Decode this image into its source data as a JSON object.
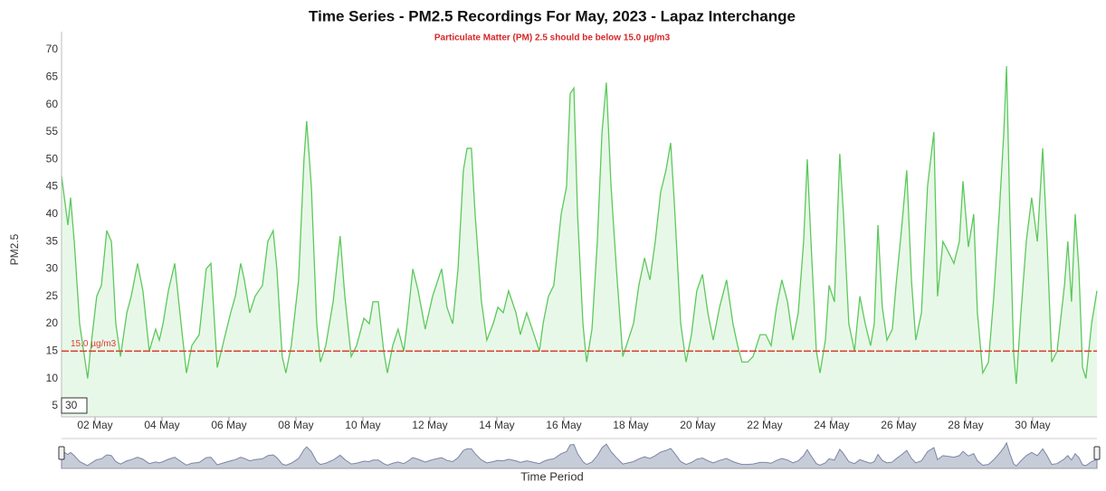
{
  "chart_data": {
    "type": "area",
    "title": "Time Series - PM2.5 Recordings For May, 2023 - Lapaz Interchange",
    "subtitle": "Particulate Matter (PM) 2.5 should be below 15.0 µg/m3",
    "y_label": "PM2.5",
    "x_label": "Time Period",
    "zoom_label": "30",
    "threshold": {
      "value": 15,
      "label": "15.0 µg/m3",
      "color": "#d9412f"
    },
    "xlim": [
      1,
      31.92
    ],
    "ylim": [
      3,
      73.3
    ],
    "xticks": [
      {
        "value": 2,
        "label": "02 May"
      },
      {
        "value": 4,
        "label": "04 May"
      },
      {
        "value": 6,
        "label": "06 May"
      },
      {
        "value": 8,
        "label": "08 May"
      },
      {
        "value": 10,
        "label": "10 May"
      },
      {
        "value": 12,
        "label": "12 May"
      },
      {
        "value": 14,
        "label": "14 May"
      },
      {
        "value": 16,
        "label": "16 May"
      },
      {
        "value": 18,
        "label": "18 May"
      },
      {
        "value": 20,
        "label": "20 May"
      },
      {
        "value": 22,
        "label": "22 May"
      },
      {
        "value": 24,
        "label": "24 May"
      },
      {
        "value": 26,
        "label": "26 May"
      },
      {
        "value": 28,
        "label": "28 May"
      },
      {
        "value": 30,
        "label": "30 May"
      }
    ],
    "yticks": [
      5,
      10,
      15,
      20,
      25,
      30,
      35,
      40,
      45,
      50,
      55,
      60,
      65,
      70
    ],
    "x": [
      1.0,
      1.19,
      1.27,
      1.38,
      1.54,
      1.78,
      1.86,
      2.05,
      2.19,
      2.35,
      2.49,
      2.62,
      2.76,
      2.95,
      3.08,
      3.27,
      3.43,
      3.62,
      3.81,
      3.92,
      4.03,
      4.19,
      4.38,
      4.57,
      4.73,
      4.89,
      5.11,
      5.32,
      5.46,
      5.65,
      5.81,
      6.05,
      6.19,
      6.35,
      6.46,
      6.62,
      6.78,
      7.0,
      7.16,
      7.32,
      7.43,
      7.59,
      7.7,
      7.86,
      8.08,
      8.24,
      8.32,
      8.46,
      8.62,
      8.73,
      8.89,
      9.11,
      9.32,
      9.46,
      9.65,
      9.81,
      10.03,
      10.19,
      10.3,
      10.46,
      10.62,
      10.73,
      10.89,
      11.05,
      11.22,
      11.32,
      11.49,
      11.65,
      11.86,
      12.08,
      12.24,
      12.35,
      12.51,
      12.68,
      12.84,
      13.0,
      13.11,
      13.24,
      13.35,
      13.54,
      13.7,
      13.89,
      14.03,
      14.19,
      14.35,
      14.57,
      14.7,
      14.89,
      15.11,
      15.27,
      15.38,
      15.54,
      15.7,
      15.92,
      16.08,
      16.19,
      16.3,
      16.41,
      16.57,
      16.68,
      16.84,
      17.0,
      17.14,
      17.27,
      17.41,
      17.57,
      17.76,
      17.92,
      18.08,
      18.24,
      18.41,
      18.57,
      18.73,
      18.89,
      19.05,
      19.19,
      19.3,
      19.49,
      19.65,
      19.81,
      19.97,
      20.14,
      20.3,
      20.46,
      20.65,
      20.86,
      21.05,
      21.19,
      21.32,
      21.49,
      21.65,
      21.86,
      22.03,
      22.19,
      22.35,
      22.51,
      22.68,
      22.84,
      23.0,
      23.16,
      23.27,
      23.38,
      23.54,
      23.65,
      23.81,
      23.92,
      24.08,
      24.24,
      24.35,
      24.51,
      24.68,
      24.84,
      25.0,
      25.16,
      25.27,
      25.38,
      25.51,
      25.65,
      25.81,
      25.92,
      26.08,
      26.24,
      26.38,
      26.51,
      26.68,
      26.86,
      27.05,
      27.16,
      27.32,
      27.49,
      27.65,
      27.81,
      27.92,
      28.08,
      28.24,
      28.35,
      28.51,
      28.68,
      28.84,
      29.0,
      29.14,
      29.22,
      29.32,
      29.43,
      29.51,
      29.65,
      29.81,
      29.97,
      30.14,
      30.3,
      30.43,
      30.57,
      30.73,
      30.95,
      31.05,
      31.16,
      31.27,
      31.38,
      31.49,
      31.59,
      31.76,
      31.92
    ],
    "series": [
      {
        "name": "PM2.5",
        "color": "#5cc95c",
        "fill": "#e8f8e8",
        "values": [
          47,
          38,
          43,
          35,
          20,
          10,
          15,
          25,
          27,
          37,
          35,
          20,
          14,
          22,
          25,
          31,
          26,
          15,
          19,
          17,
          20,
          26,
          31,
          20,
          11,
          16,
          18,
          30,
          31,
          12,
          16,
          22,
          25,
          31,
          28,
          22,
          25,
          27,
          35,
          37,
          30,
          14,
          11,
          16,
          28,
          50,
          57,
          45,
          20,
          13,
          16,
          24,
          36,
          25,
          14,
          16,
          21,
          20,
          24,
          24,
          15,
          11,
          16,
          19,
          15,
          20,
          30,
          26,
          19,
          25,
          28,
          30,
          23,
          20,
          30,
          48,
          52,
          52,
          40,
          24,
          17,
          20,
          23,
          22,
          26,
          22,
          18,
          22,
          18,
          15,
          20,
          25,
          27,
          40,
          45,
          62,
          63,
          40,
          20,
          13,
          19,
          35,
          55,
          64,
          45,
          30,
          14,
          17,
          20,
          27,
          32,
          28,
          35,
          44,
          48,
          53,
          42,
          20,
          13,
          18,
          26,
          29,
          22,
          17,
          23,
          28,
          20,
          16,
          13,
          13,
          14,
          18,
          18,
          16,
          23,
          28,
          24,
          17,
          22,
          35,
          50,
          35,
          15,
          11,
          17,
          27,
          24,
          51,
          40,
          20,
          15,
          25,
          20,
          16,
          20,
          38,
          23,
          17,
          19,
          27,
          37,
          48,
          28,
          17,
          22,
          45,
          55,
          25,
          35,
          33,
          31,
          35,
          46,
          34,
          40,
          22,
          11,
          13,
          25,
          40,
          55,
          67,
          40,
          15,
          9,
          22,
          35,
          43,
          35,
          52,
          35,
          13,
          15,
          27,
          35,
          24,
          40,
          30,
          12,
          10,
          20,
          26
        ]
      }
    ]
  }
}
